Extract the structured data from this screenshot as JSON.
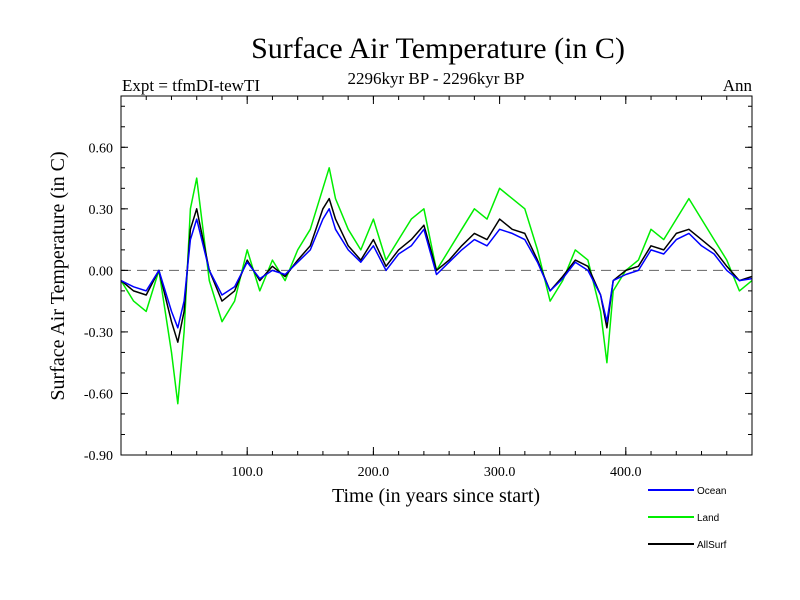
{
  "chart_data": {
    "type": "line",
    "title": "Surface Air Temperature (in C)",
    "subtitle_left": "Expt = tfmDI-tewTI",
    "subtitle_center": "2296kyr BP - 2296kyr BP",
    "subtitle_right": "Ann",
    "xlabel": "Time (in years since start)",
    "ylabel": "Surface Air Temperature (in C)",
    "xlim": [
      0,
      500
    ],
    "ylim": [
      -0.9,
      0.85
    ],
    "x_ticks": [
      100,
      200,
      300,
      400
    ],
    "x_tick_labels": [
      "100.0",
      "200.0",
      "300.0",
      "400.0"
    ],
    "y_ticks": [
      -0.9,
      -0.6,
      -0.3,
      0.0,
      0.3,
      0.6
    ],
    "y_tick_labels": [
      "-0.90",
      "-0.60",
      "-0.30",
      "0.00",
      "0.30",
      "0.60"
    ],
    "zero_line": 0.0,
    "legend": [
      {
        "name": "Ocean",
        "color": "#0000ff"
      },
      {
        "name": "Land",
        "color": "#00ee00"
      },
      {
        "name": "AllSurf",
        "color": "#000000"
      }
    ],
    "x": [
      0,
      10,
      20,
      30,
      40,
      45,
      50,
      55,
      60,
      70,
      80,
      90,
      100,
      110,
      120,
      130,
      140,
      150,
      160,
      165,
      170,
      180,
      190,
      200,
      210,
      220,
      230,
      240,
      250,
      260,
      270,
      280,
      290,
      300,
      310,
      320,
      330,
      340,
      350,
      360,
      370,
      380,
      385,
      390,
      400,
      410,
      420,
      430,
      440,
      450,
      460,
      470,
      480,
      490,
      500
    ],
    "series": [
      {
        "name": "Land",
        "color": "#00ee00",
        "values": [
          -0.05,
          -0.15,
          -0.2,
          0.0,
          -0.4,
          -0.65,
          -0.3,
          0.3,
          0.45,
          -0.05,
          -0.25,
          -0.15,
          0.1,
          -0.1,
          0.05,
          -0.05,
          0.1,
          0.2,
          0.4,
          0.5,
          0.35,
          0.2,
          0.1,
          0.25,
          0.05,
          0.15,
          0.25,
          0.3,
          0.0,
          0.1,
          0.2,
          0.3,
          0.25,
          0.4,
          0.35,
          0.3,
          0.1,
          -0.15,
          -0.05,
          0.1,
          0.05,
          -0.2,
          -0.45,
          -0.1,
          0.0,
          0.05,
          0.2,
          0.15,
          0.25,
          0.35,
          0.25,
          0.15,
          0.05,
          -0.1,
          -0.05
        ]
      },
      {
        "name": "AllSurf",
        "color": "#000000",
        "values": [
          -0.05,
          -0.1,
          -0.12,
          0.0,
          -0.25,
          -0.35,
          -0.2,
          0.2,
          0.3,
          0.0,
          -0.15,
          -0.1,
          0.05,
          -0.05,
          0.02,
          -0.03,
          0.05,
          0.12,
          0.3,
          0.35,
          0.25,
          0.12,
          0.05,
          0.15,
          0.02,
          0.1,
          0.15,
          0.22,
          0.0,
          0.05,
          0.12,
          0.18,
          0.15,
          0.25,
          0.2,
          0.18,
          0.05,
          -0.1,
          -0.03,
          0.05,
          0.02,
          -0.12,
          -0.28,
          -0.05,
          0.0,
          0.02,
          0.12,
          0.1,
          0.18,
          0.2,
          0.15,
          0.1,
          0.02,
          -0.05,
          -0.03
        ]
      },
      {
        "name": "Ocean",
        "color": "#0000ff",
        "values": [
          -0.05,
          -0.08,
          -0.1,
          0.0,
          -0.2,
          -0.28,
          -0.15,
          0.15,
          0.25,
          0.0,
          -0.12,
          -0.08,
          0.04,
          -0.04,
          0.0,
          -0.02,
          0.04,
          0.1,
          0.25,
          0.3,
          0.2,
          0.1,
          0.04,
          0.12,
          0.0,
          0.08,
          0.12,
          0.2,
          -0.02,
          0.04,
          0.1,
          0.15,
          0.12,
          0.2,
          0.18,
          0.15,
          0.04,
          -0.1,
          -0.04,
          0.04,
          0.0,
          -0.12,
          -0.25,
          -0.05,
          -0.02,
          0.0,
          0.1,
          0.08,
          0.15,
          0.18,
          0.12,
          0.08,
          0.0,
          -0.05,
          -0.04
        ]
      }
    ]
  }
}
